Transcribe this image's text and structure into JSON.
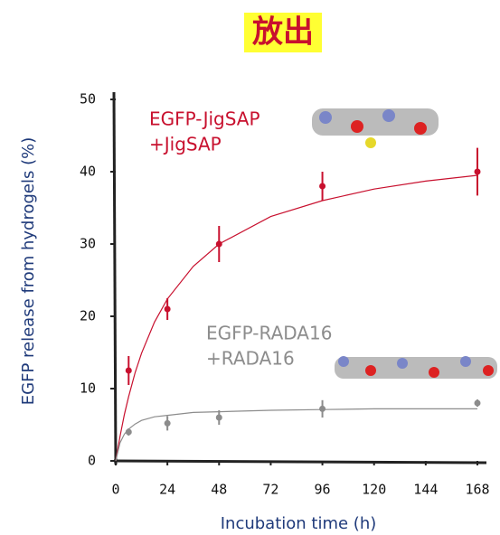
{
  "chart_data": {
    "type": "scatter",
    "title": "放出",
    "x_label": "Incubation time (h)",
    "y_label": "EGFP release from hydrogels  (%)",
    "xlim": [
      0,
      168
    ],
    "xticks": [
      0,
      24,
      48,
      72,
      96,
      120,
      144,
      168
    ],
    "ylim": [
      0,
      50
    ],
    "yticks": [
      0,
      10,
      20,
      30,
      40,
      50
    ],
    "series": [
      {
        "label": [
          "EGFP-JigSAP",
          "+JigSAP"
        ],
        "color": "#c8102e",
        "x": [
          6,
          24,
          48,
          96,
          168
        ],
        "values": [
          12.5,
          21,
          30,
          38,
          40
        ],
        "errors": [
          2,
          1.5,
          2.5,
          2,
          3.3
        ],
        "fit": {
          "x": [
            0,
            2,
            4,
            6,
            9,
            12,
            18,
            24,
            36,
            48,
            72,
            96,
            120,
            144,
            168
          ],
          "values": [
            0,
            3.4,
            6.4,
            8.9,
            12.2,
            14.9,
            19.2,
            22.4,
            26.9,
            30,
            33.8,
            36,
            37.6,
            38.7,
            39.5
          ]
        }
      },
      {
        "label": [
          "EGFP-RADA16",
          "+RADA16"
        ],
        "color": "#8c8c8c",
        "x": [
          6,
          24,
          48,
          96,
          168
        ],
        "values": [
          4,
          5.2,
          6,
          7.2,
          8
        ],
        "errors": [
          0.5,
          1,
          1,
          1.2,
          0.5
        ],
        "fit": {
          "x": [
            0,
            2,
            4,
            6,
            9,
            12,
            18,
            24,
            36,
            48,
            72,
            96,
            120,
            144,
            168
          ],
          "values": [
            0,
            2.5,
            3.7,
            4.4,
            5.1,
            5.6,
            6.1,
            6.3,
            6.7,
            6.8,
            7,
            7.1,
            7.2,
            7.2,
            7.2
          ]
        }
      }
    ]
  }
}
